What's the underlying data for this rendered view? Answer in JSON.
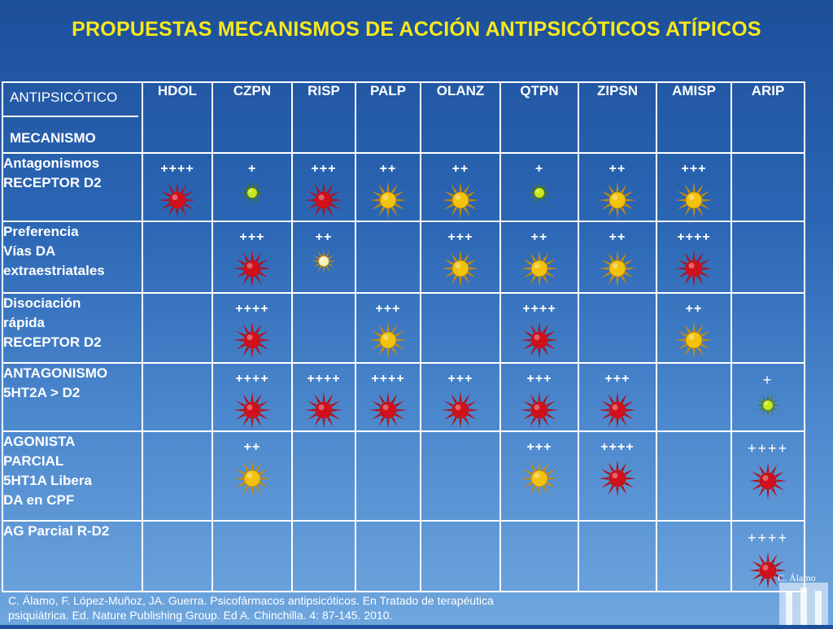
{
  "title": "PROPUESTAS MECANISMOS DE ACCIÓN ANTIPSICÓTICOS ATÍPICOS",
  "header": {
    "corner_top": "ANTIPSICÓTICO",
    "corner_bottom": "MECANISMO",
    "drugs": [
      "HDOL",
      "CZPN",
      "RISP",
      "PALP",
      "OLANZ",
      "QTPN",
      "ZIPSN",
      "AMISP",
      "ARIP"
    ]
  },
  "rows": [
    {
      "label": [
        "Antagonismos",
        "RECEPTOR D2"
      ],
      "cells": [
        {
          "rating": "++++",
          "color": "red",
          "size": "big"
        },
        {
          "rating": "+",
          "color": "lime",
          "size": "small"
        },
        {
          "rating": "+++",
          "color": "red",
          "size": "big"
        },
        {
          "rating": "++",
          "color": "yellow",
          "size": "big"
        },
        {
          "rating": "++",
          "color": "yellow",
          "size": "big"
        },
        {
          "rating": "+",
          "color": "lime",
          "size": "small"
        },
        {
          "rating": "++",
          "color": "yellow",
          "size": "big"
        },
        {
          "rating": "+++",
          "color": "yellow",
          "size": "big"
        },
        null
      ]
    },
    {
      "label": [
        "Preferencia",
        "Vías DA",
        "extraestriatales"
      ],
      "cells": [
        null,
        {
          "rating": "+++",
          "color": "red",
          "size": "big"
        },
        {
          "rating": "++",
          "color": "pale",
          "size": "small"
        },
        null,
        {
          "rating": "+++",
          "color": "yellow",
          "size": "big"
        },
        {
          "rating": "++",
          "color": "yellow",
          "size": "big"
        },
        {
          "rating": "++",
          "color": "yellow",
          "size": "big"
        },
        {
          "rating": "++++",
          "color": "red",
          "size": "big"
        },
        null
      ]
    },
    {
      "label": [
        "Disociación",
        "rápida",
        "RECEPTOR D2"
      ],
      "cells": [
        null,
        {
          "rating": "++++",
          "color": "red",
          "size": "big"
        },
        null,
        {
          "rating": "+++",
          "color": "yellow",
          "size": "big"
        },
        null,
        {
          "rating": "++++",
          "color": "red",
          "size": "big"
        },
        null,
        {
          "rating": "++",
          "color": "yellow",
          "size": "big"
        },
        null
      ]
    },
    {
      "label": [
        "ANTAGONISMO",
        "5HT2A > D2"
      ],
      "cells": [
        null,
        {
          "rating": "++++",
          "color": "red",
          "size": "big"
        },
        {
          "rating": "++++",
          "color": "red",
          "size": "big"
        },
        {
          "rating": "++++",
          "color": "red",
          "size": "big"
        },
        {
          "rating": "+++",
          "color": "red",
          "size": "big"
        },
        {
          "rating": "+++",
          "color": "red",
          "size": "big"
        },
        {
          "rating": "+++",
          "color": "red",
          "size": "big"
        },
        null,
        {
          "rating": "+",
          "color": "lime",
          "size": "small",
          "style": "big"
        }
      ]
    },
    {
      "label": [
        "AGONISTA",
        "PARCIAL",
        "5HT1A Libera",
        "DA en CPF"
      ],
      "cells": [
        null,
        {
          "rating": "++",
          "color": "yellow",
          "size": "big"
        },
        null,
        null,
        null,
        {
          "rating": "+++",
          "color": "yellow",
          "size": "big"
        },
        {
          "rating": "++++",
          "color": "red",
          "size": "big"
        },
        null,
        {
          "rating": "++++",
          "color": "red",
          "size": "big",
          "style": "big"
        }
      ]
    },
    {
      "label": [
        "AG Parcial R-D2"
      ],
      "cells": [
        null,
        null,
        null,
        null,
        null,
        null,
        null,
        null,
        {
          "rating": "++++",
          "color": "red",
          "size": "big",
          "style": "big"
        }
      ]
    }
  ],
  "footer": {
    "line1": "C.  Álamo, F. López-Muñoz, JA. Guerra. Psicofármacos antipsicóticos.  En Tratado de terapéutica",
    "line2": "psiquiátrica. Ed. Nature Publishing Group. Ed A. Chinchilla. 4: 87-145. 2010."
  },
  "brand_label": "C. Álamo",
  "colors": {
    "red": "#d0111b",
    "yellow": "#f3c20c",
    "lime": "#c8e61d",
    "pale": "#f3f0c0",
    "title": "#f6e91a"
  }
}
